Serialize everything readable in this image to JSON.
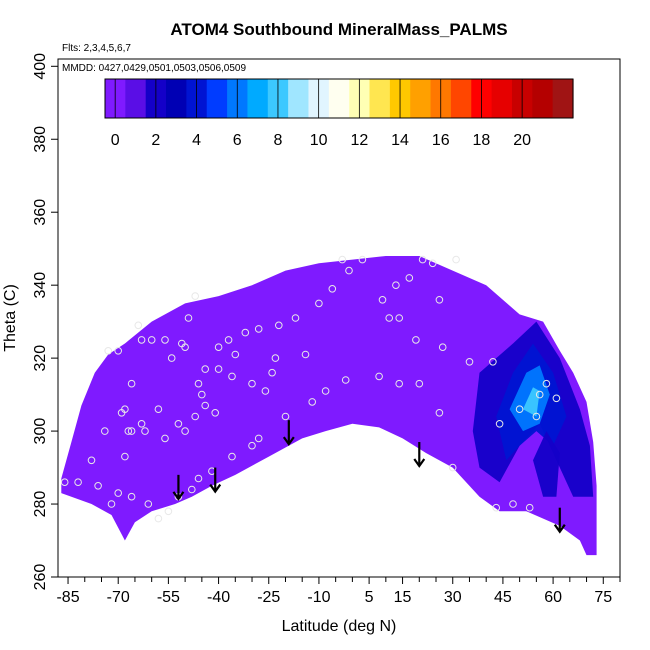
{
  "chart_data": {
    "type": "heatmap",
    "title": "ATOM4 Southbound MineralMass_PALMS",
    "subtitle_flights": "Flts: 2,3,4,5,6,7",
    "subtitle_dates": "MMDD: 0427,0429,0501,0503,0506,0509",
    "xlabel": "Latitude (deg N)",
    "ylabel": "Theta (C)",
    "xlim": [
      -88,
      80
    ],
    "ylim": [
      260,
      402
    ],
    "x_ticks": [
      -85,
      -70,
      -55,
      -40,
      -25,
      -10,
      5,
      15,
      30,
      45,
      60,
      75
    ],
    "x_minor_ticks": [
      -80,
      -75,
      -65,
      -60,
      -50,
      -45,
      -35,
      -30,
      -20,
      -15,
      -5,
      0,
      10,
      20,
      25,
      35,
      40,
      50,
      55,
      65,
      70,
      80
    ],
    "y_ticks": [
      260,
      280,
      300,
      320,
      340,
      360,
      380,
      400
    ],
    "colorbar": {
      "min": -0.5,
      "max": 22.5,
      "ticks": [
        0,
        2,
        4,
        6,
        8,
        10,
        12,
        14,
        16,
        18,
        20
      ],
      "colors": [
        "#7f1aff",
        "#5a0ee6",
        "#1400c8",
        "#0000b4",
        "#0014d2",
        "#003cff",
        "#0078ff",
        "#00aaff",
        "#3cc8ff",
        "#a0e6ff",
        "#e1f5ff",
        "#fffff0",
        "#ffffb4",
        "#ffe650",
        "#ffc800",
        "#ffa000",
        "#ff7800",
        "#ff4600",
        "#ff0000",
        "#e60000",
        "#c80000",
        "#b40000",
        "#a01414"
      ]
    },
    "background_value": 0,
    "field_outline": [
      [
        -87,
        287
      ],
      [
        -84,
        297
      ],
      [
        -81,
        307
      ],
      [
        -77,
        316
      ],
      [
        -73,
        321
      ],
      [
        -68,
        324
      ],
      [
        -60,
        330
      ],
      [
        -50,
        335
      ],
      [
        -40,
        337
      ],
      [
        -30,
        340
      ],
      [
        -20,
        344
      ],
      [
        -10,
        346
      ],
      [
        0,
        347
      ],
      [
        10,
        348
      ],
      [
        20,
        348
      ],
      [
        30,
        344
      ],
      [
        40,
        340
      ],
      [
        50,
        332
      ],
      [
        57,
        330
      ],
      [
        62,
        322
      ],
      [
        66,
        316
      ],
      [
        70,
        308
      ],
      [
        72,
        297
      ],
      [
        73,
        285
      ],
      [
        73,
        266
      ],
      [
        70,
        266
      ],
      [
        68,
        270
      ],
      [
        62,
        274
      ],
      [
        52,
        278
      ],
      [
        44,
        278
      ],
      [
        38,
        282
      ],
      [
        30,
        290
      ],
      [
        22,
        294
      ],
      [
        15,
        298
      ],
      [
        8,
        301
      ],
      [
        0,
        302
      ],
      [
        -8,
        300
      ],
      [
        -15,
        298
      ],
      [
        -25,
        293
      ],
      [
        -35,
        288
      ],
      [
        -42,
        285
      ],
      [
        -48,
        282
      ],
      [
        -53,
        280
      ],
      [
        -60,
        278
      ],
      [
        -65,
        275
      ],
      [
        -68,
        270
      ],
      [
        -72,
        277
      ],
      [
        -78,
        280
      ],
      [
        -84,
        282
      ],
      [
        -87,
        283
      ]
    ],
    "plume_regions": [
      {
        "value": 2,
        "polygon": [
          [
            38,
            316
          ],
          [
            48,
            324
          ],
          [
            55,
            330
          ],
          [
            62,
            320
          ],
          [
            68,
            306
          ],
          [
            71,
            296
          ],
          [
            72,
            282
          ],
          [
            66,
            282
          ],
          [
            60,
            294
          ],
          [
            56,
            302
          ],
          [
            50,
            296
          ],
          [
            44,
            286
          ],
          [
            38,
            290
          ],
          [
            36,
            300
          ]
        ]
      },
      {
        "value": 4,
        "polygon": [
          [
            43,
            304
          ],
          [
            48,
            316
          ],
          [
            54,
            324
          ],
          [
            60,
            316
          ],
          [
            64,
            304
          ],
          [
            60,
            296
          ],
          [
            55,
            300
          ],
          [
            50,
            296
          ],
          [
            46,
            292
          ]
        ]
      },
      {
        "value": 6,
        "polygon": [
          [
            47,
            306
          ],
          [
            52,
            316
          ],
          [
            56,
            318
          ],
          [
            59,
            310
          ],
          [
            56,
            302
          ],
          [
            51,
            300
          ]
        ]
      },
      {
        "value": 8,
        "polygon": [
          [
            51,
            306
          ],
          [
            54,
            312
          ],
          [
            56,
            311
          ],
          [
            55,
            304
          ]
        ]
      },
      {
        "value": 2,
        "polygon": [
          [
            54,
            292
          ],
          [
            58,
            300
          ],
          [
            62,
            294
          ],
          [
            61,
            282
          ],
          [
            57,
            282
          ]
        ]
      }
    ],
    "observation_points": [
      [
        -86,
        286
      ],
      [
        -82,
        286
      ],
      [
        -76,
        285
      ],
      [
        -72,
        280
      ],
      [
        -70,
        283
      ],
      [
        -68,
        293
      ],
      [
        -66,
        300
      ],
      [
        -63,
        302
      ],
      [
        -69,
        305
      ],
      [
        -68,
        306
      ],
      [
        -67,
        300
      ],
      [
        -62,
        300
      ],
      [
        -58,
        306
      ],
      [
        -56,
        298
      ],
      [
        -52,
        302
      ],
      [
        -50,
        300
      ],
      [
        -47,
        304
      ],
      [
        -44,
        307
      ],
      [
        -41,
        305
      ],
      [
        -45,
        310
      ],
      [
        -46,
        313
      ],
      [
        -44,
        317
      ],
      [
        -40,
        317
      ],
      [
        -36,
        315
      ],
      [
        -30,
        313
      ],
      [
        -26,
        311
      ],
      [
        -24,
        316
      ],
      [
        -23,
        320
      ],
      [
        -35,
        321
      ],
      [
        -37,
        325
      ],
      [
        -40,
        323
      ],
      [
        -32,
        327
      ],
      [
        -28,
        328
      ],
      [
        -22,
        329
      ],
      [
        -17,
        331
      ],
      [
        -14,
        321
      ],
      [
        -10,
        335
      ],
      [
        -6,
        339
      ],
      [
        -1,
        344
      ],
      [
        3,
        347
      ],
      [
        -3,
        347
      ],
      [
        9,
        336
      ],
      [
        11,
        331
      ],
      [
        14,
        331
      ],
      [
        13,
        340
      ],
      [
        17,
        342
      ],
      [
        19,
        325
      ],
      [
        21,
        347
      ],
      [
        24,
        346
      ],
      [
        26,
        336
      ],
      [
        27,
        323
      ],
      [
        31,
        347
      ],
      [
        35,
        319
      ],
      [
        42,
        319
      ],
      [
        44,
        302
      ],
      [
        43,
        279
      ],
      [
        48,
        280
      ],
      [
        50,
        306
      ],
      [
        53,
        279
      ],
      [
        55,
        304
      ],
      [
        56,
        310
      ],
      [
        58,
        313
      ],
      [
        61,
        309
      ],
      [
        -64,
        329
      ],
      [
        -63,
        325
      ],
      [
        -60,
        325
      ],
      [
        -56,
        325
      ],
      [
        -54,
        320
      ],
      [
        -51,
        324
      ],
      [
        -50,
        323
      ],
      [
        -49,
        331
      ],
      [
        -47,
        337
      ],
      [
        -73,
        322
      ],
      [
        -70,
        322
      ],
      [
        -66,
        313
      ],
      [
        -74,
        300
      ],
      [
        -78,
        292
      ],
      [
        -66,
        282
      ],
      [
        -61,
        280
      ],
      [
        -58,
        276
      ],
      [
        -55,
        278
      ],
      [
        -52,
        282
      ],
      [
        -48,
        284
      ],
      [
        -46,
        287
      ],
      [
        -42,
        289
      ],
      [
        -36,
        293
      ],
      [
        -30,
        296
      ],
      [
        -28,
        298
      ],
      [
        -20,
        304
      ],
      [
        -12,
        308
      ],
      [
        -8,
        311
      ],
      [
        -2,
        314
      ],
      [
        8,
        315
      ],
      [
        14,
        313
      ],
      [
        20,
        313
      ],
      [
        26,
        305
      ],
      [
        30,
        290
      ]
    ],
    "arrows": [
      [
        -52,
        288
      ],
      [
        -41,
        290
      ],
      [
        -19,
        303
      ],
      [
        20,
        297
      ],
      [
        62,
        279
      ]
    ]
  }
}
